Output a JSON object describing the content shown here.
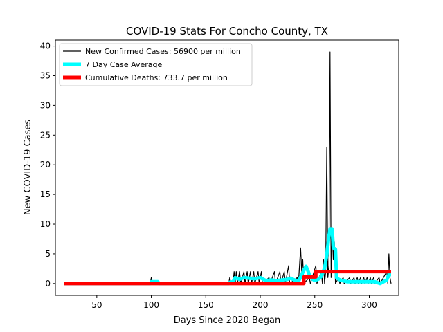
{
  "chart_data": {
    "type": "line",
    "title": "COVID-19 Stats For Concho County, TX",
    "xlabel": "Days Since 2020 Began",
    "ylabel": "New COVID-19 Cases",
    "xlim": [
      12,
      327
    ],
    "ylim": [
      -2,
      41
    ],
    "xticks": [
      50,
      100,
      150,
      200,
      250,
      300
    ],
    "yticks": [
      0,
      5,
      10,
      15,
      20,
      25,
      30,
      35,
      40
    ],
    "grid": false,
    "legend_position": "top-left",
    "colors": {
      "cases": "#000000",
      "average": "#00ffff",
      "deaths": "#ff0000"
    },
    "series": [
      {
        "name": "New Confirmed Cases: 56900 per million",
        "key": "cases",
        "points": [
          [
            20,
            0
          ],
          [
            99,
            0
          ],
          [
            100,
            1
          ],
          [
            101,
            0
          ],
          [
            171,
            0
          ],
          [
            172,
            1
          ],
          [
            173,
            0
          ],
          [
            175,
            0
          ],
          [
            176,
            2
          ],
          [
            177,
            0
          ],
          [
            178,
            2
          ],
          [
            179,
            0
          ],
          [
            181,
            2
          ],
          [
            182,
            0
          ],
          [
            185,
            2
          ],
          [
            186,
            0
          ],
          [
            188,
            2
          ],
          [
            189,
            0
          ],
          [
            191,
            2
          ],
          [
            192,
            0
          ],
          [
            194,
            2
          ],
          [
            195,
            0
          ],
          [
            198,
            2
          ],
          [
            199,
            0
          ],
          [
            201,
            2
          ],
          [
            202,
            0
          ],
          [
            208,
            1
          ],
          [
            209,
            0
          ],
          [
            213,
            2
          ],
          [
            214,
            0
          ],
          [
            218,
            2
          ],
          [
            219,
            0
          ],
          [
            222,
            2
          ],
          [
            223,
            0
          ],
          [
            226,
            3
          ],
          [
            227,
            0
          ],
          [
            234,
            1
          ],
          [
            235,
            0
          ],
          [
            237,
            6
          ],
          [
            238,
            2
          ],
          [
            239,
            4
          ],
          [
            240,
            0
          ],
          [
            245,
            1
          ],
          [
            246,
            0
          ],
          [
            251,
            3
          ],
          [
            252,
            0
          ],
          [
            256,
            2
          ],
          [
            257,
            0
          ],
          [
            258,
            4
          ],
          [
            259,
            0
          ],
          [
            260,
            2
          ],
          [
            261,
            23
          ],
          [
            262,
            1
          ],
          [
            263,
            3
          ],
          [
            264,
            39
          ],
          [
            265,
            1
          ],
          [
            266,
            9
          ],
          [
            267,
            4
          ],
          [
            268,
            7
          ],
          [
            269,
            0
          ],
          [
            272,
            1
          ],
          [
            273,
            0
          ],
          [
            276,
            1
          ],
          [
            277,
            0
          ],
          [
            282,
            1
          ],
          [
            283,
            0
          ],
          [
            286,
            1
          ],
          [
            287,
            0
          ],
          [
            289,
            1
          ],
          [
            290,
            0
          ],
          [
            292,
            1
          ],
          [
            293,
            0
          ],
          [
            295,
            1
          ],
          [
            296,
            0
          ],
          [
            298,
            1
          ],
          [
            299,
            0
          ],
          [
            301,
            1
          ],
          [
            302,
            0
          ],
          [
            304,
            1
          ],
          [
            305,
            0
          ],
          [
            309,
            1
          ],
          [
            310,
            0
          ],
          [
            316,
            2
          ],
          [
            317,
            0
          ],
          [
            318,
            5
          ],
          [
            319,
            1
          ],
          [
            320,
            0
          ]
        ]
      },
      {
        "name": "7 Day Case Average",
        "key": "average",
        "points": [
          [
            20,
            0
          ],
          [
            99,
            0
          ],
          [
            100,
            0.3
          ],
          [
            106,
            0.3
          ],
          [
            107,
            0
          ],
          [
            171,
            0
          ],
          [
            172,
            0.2
          ],
          [
            175,
            0.3
          ],
          [
            177,
            1
          ],
          [
            181,
            0.7
          ],
          [
            185,
            1
          ],
          [
            190,
            0.9
          ],
          [
            195,
            0.8
          ],
          [
            200,
            1
          ],
          [
            205,
            0.5
          ],
          [
            210,
            0.6
          ],
          [
            215,
            0.5
          ],
          [
            220,
            0.6
          ],
          [
            225,
            0.7
          ],
          [
            228,
            0.9
          ],
          [
            230,
            0.7
          ],
          [
            235,
            0.3
          ],
          [
            238,
            1.5
          ],
          [
            240,
            2.2
          ],
          [
            242,
            2.9
          ],
          [
            244,
            2
          ],
          [
            246,
            1
          ],
          [
            250,
            0.5
          ],
          [
            254,
            0.8
          ],
          [
            256,
            1.2
          ],
          [
            259,
            2.6
          ],
          [
            261,
            4.8
          ],
          [
            263,
            8
          ],
          [
            264,
            9.2
          ],
          [
            266,
            9.2
          ],
          [
            267,
            6
          ],
          [
            269,
            5.8
          ],
          [
            270,
            1
          ],
          [
            272,
            0.7
          ],
          [
            275,
            0.5
          ],
          [
            280,
            0.3
          ],
          [
            285,
            0.3
          ],
          [
            290,
            0.3
          ],
          [
            295,
            0.3
          ],
          [
            300,
            0.3
          ],
          [
            305,
            0.3
          ],
          [
            310,
            0
          ],
          [
            313,
            0.3
          ],
          [
            316,
            0.6
          ],
          [
            318,
            1.5
          ],
          [
            320,
            1.5
          ]
        ]
      },
      {
        "name": "Cumulative Deaths: 733.7 per million",
        "key": "deaths",
        "points": [
          [
            20,
            0
          ],
          [
            240,
            0
          ],
          [
            240,
            1.1
          ],
          [
            251,
            1.1
          ],
          [
            251,
            2
          ],
          [
            320,
            2
          ]
        ]
      }
    ]
  }
}
